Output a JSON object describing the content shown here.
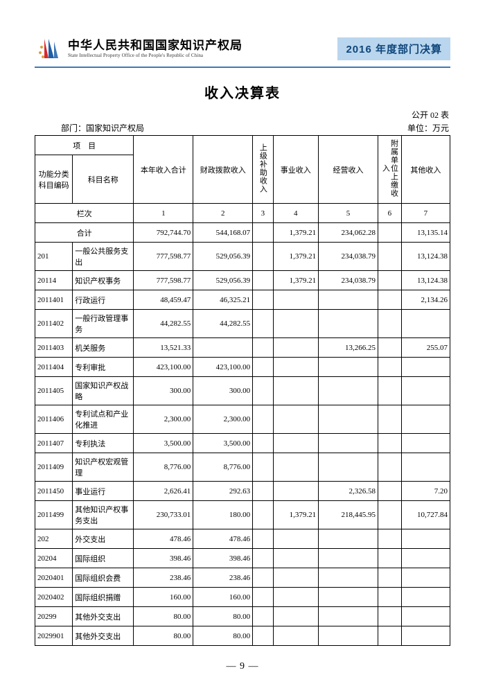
{
  "header": {
    "org_cn": "中华人民共和国国家知识产权局",
    "org_en": "State Intellectual Property Office of the People's Republic of China",
    "badge": "2016 年度部门决算",
    "logo_colors": {
      "red": "#d7282f",
      "blue": "#1f5fa6",
      "gold": "#d9a23a"
    }
  },
  "title": "收入决算表",
  "meta": {
    "form_no": "公开 02 表",
    "dept_label": "部门：国家知识产权局",
    "unit": "单位：万元"
  },
  "table": {
    "header": {
      "project": "项　目",
      "code": "功能分类科目编码",
      "name": "科目名称",
      "c1": "本年收入合计",
      "c2": "财政拨款收入",
      "c3": "上级补助收入",
      "c4": "事业收入",
      "c5": "经营收入",
      "c6": "附属单位上缴收入",
      "c7": "其他收入",
      "lane": "栏次",
      "lanes": [
        "1",
        "2",
        "3",
        "4",
        "5",
        "6",
        "7"
      ],
      "total": "合计"
    },
    "rows": [
      {
        "code": "",
        "name": "合计",
        "v": [
          "792,744.70",
          "544,168.07",
          "",
          "1,379.21",
          "234,062.28",
          "",
          "13,135.14"
        ],
        "total": true
      },
      {
        "code": "201",
        "name": "一般公共服务支出",
        "v": [
          "777,598.77",
          "529,056.39",
          "",
          "1,379.21",
          "234,038.79",
          "",
          "13,124.38"
        ],
        "indent": true
      },
      {
        "code": "20114",
        "name": "知识产权事务",
        "v": [
          "777,598.77",
          "529,056.39",
          "",
          "1,379.21",
          "234,038.79",
          "",
          "13,124.38"
        ]
      },
      {
        "code": "2011401",
        "name": "行政运行",
        "v": [
          "48,459.47",
          "46,325.21",
          "",
          "",
          "",
          "",
          "2,134.26"
        ],
        "indent": true
      },
      {
        "code": "2011402",
        "name": "一般行政管理事务",
        "v": [
          "44,282.55",
          "44,282.55",
          "",
          "",
          "",
          "",
          ""
        ],
        "indent": true
      },
      {
        "code": "2011403",
        "name": "机关服务",
        "v": [
          "13,521.33",
          "",
          "",
          "",
          "13,266.25",
          "",
          "255.07"
        ],
        "indent": true
      },
      {
        "code": "2011404",
        "name": "专利审批",
        "v": [
          "423,100.00",
          "423,100.00",
          "",
          "",
          "",
          "",
          ""
        ],
        "indent": true
      },
      {
        "code": "2011405",
        "name": "国家知识产权战略",
        "v": [
          "300.00",
          "300.00",
          "",
          "",
          "",
          "",
          ""
        ],
        "indent": true
      },
      {
        "code": "2011406",
        "name": "专利试点和产业化推进",
        "v": [
          "2,300.00",
          "2,300.00",
          "",
          "",
          "",
          "",
          ""
        ],
        "indent": true
      },
      {
        "code": "2011407",
        "name": "专利执法",
        "v": [
          "3,500.00",
          "3,500.00",
          "",
          "",
          "",
          "",
          ""
        ],
        "indent": true
      },
      {
        "code": "2011409",
        "name": "知识产权宏观管理",
        "v": [
          "8,776.00",
          "8,776.00",
          "",
          "",
          "",
          "",
          ""
        ],
        "indent": true
      },
      {
        "code": "2011450",
        "name": "事业运行",
        "v": [
          "2,626.41",
          "292.63",
          "",
          "",
          "2,326.58",
          "",
          "7.20"
        ],
        "indent": true
      },
      {
        "code": "2011499",
        "name": "其他知识产权事务支出",
        "v": [
          "230,733.01",
          "180.00",
          "",
          "1,379.21",
          "218,445.95",
          "",
          "10,727.84"
        ],
        "indent": true
      },
      {
        "code": "202",
        "name": "外交支出",
        "v": [
          "478.46",
          "478.46",
          "",
          "",
          "",
          "",
          ""
        ]
      },
      {
        "code": "20204",
        "name": "国际组织",
        "v": [
          "398.46",
          "398.46",
          "",
          "",
          "",
          "",
          ""
        ]
      },
      {
        "code": "2020401",
        "name": "国际组织会费",
        "v": [
          "238.46",
          "238.46",
          "",
          "",
          "",
          "",
          ""
        ],
        "indent": true
      },
      {
        "code": "2020402",
        "name": "国际组织捐赠",
        "v": [
          "160.00",
          "160.00",
          "",
          "",
          "",
          "",
          ""
        ],
        "indent": true
      },
      {
        "code": "20299",
        "name": "其他外交支出",
        "v": [
          "80.00",
          "80.00",
          "",
          "",
          "",
          "",
          ""
        ]
      },
      {
        "code": "2029901",
        "name": "其他外交支出",
        "v": [
          "80.00",
          "80.00",
          "",
          "",
          "",
          "",
          ""
        ],
        "indent": true
      }
    ]
  },
  "footer": {
    "page": "— 9 —"
  }
}
